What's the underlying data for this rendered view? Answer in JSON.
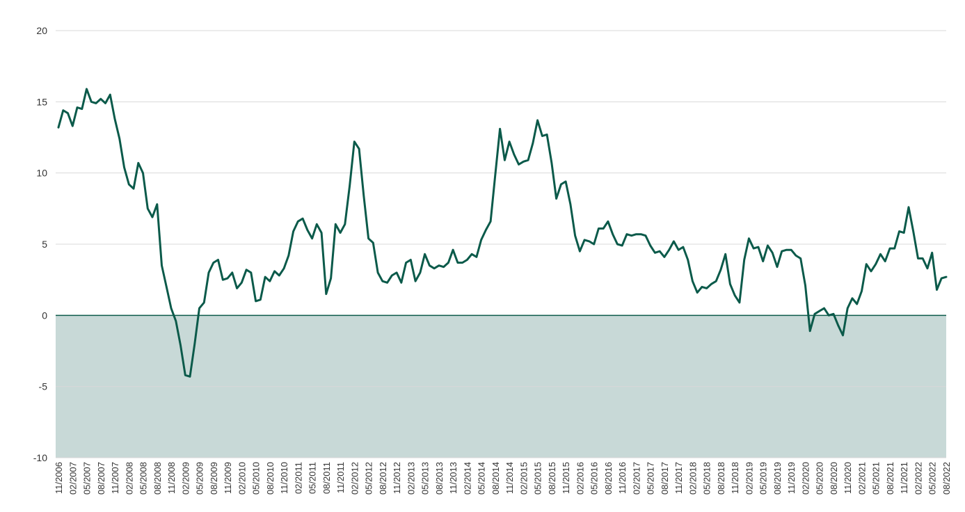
{
  "chart_data": {
    "type": "line",
    "title": "",
    "xlabel": "",
    "ylabel": "",
    "ylim": [
      -10,
      20
    ],
    "yticks": [
      20,
      15,
      10,
      5,
      0,
      -5,
      -10
    ],
    "grid": true,
    "legend": "none",
    "colors": {
      "line": "#0b5a4a",
      "negative_fill": "#c8d9d7",
      "zero_line": "#0b5a4a",
      "grid": "#d8d8d8"
    },
    "x_tick_labels": [
      "11/2006",
      "02/2007",
      "05/2007",
      "08/2007",
      "11/2007",
      "02/2008",
      "05/2008",
      "08/2008",
      "11/2008",
      "02/2009",
      "05/2009",
      "08/2009",
      "11/2009",
      "02/2010",
      "05/2010",
      "08/2010",
      "11/2010",
      "02/2011",
      "05/2011",
      "08/2011",
      "11/2011",
      "02/2012",
      "05/2012",
      "08/2012",
      "11/2012",
      "02/2013",
      "05/2013",
      "08/2013",
      "11/2013",
      "02/2014",
      "05/2014",
      "08/2014",
      "11/2014",
      "02/2015",
      "05/2015",
      "08/2015",
      "11/2015",
      "02/2016",
      "05/2016",
      "08/2016",
      "11/2016",
      "02/2017",
      "05/2017",
      "08/2017",
      "11/2017",
      "02/2018",
      "05/2018",
      "08/2018",
      "11/2018",
      "02/2019",
      "05/2019",
      "08/2019",
      "11/2019",
      "02/2020",
      "05/2020",
      "08/2020",
      "11/2020",
      "02/2021",
      "05/2021",
      "08/2021",
      "11/2021",
      "02/2022",
      "05/2022",
      "08/2022"
    ],
    "x": [
      "11/2006",
      "12/2006",
      "01/2007",
      "02/2007",
      "03/2007",
      "04/2007",
      "05/2007",
      "06/2007",
      "07/2007",
      "08/2007",
      "09/2007",
      "10/2007",
      "11/2007",
      "12/2007",
      "01/2008",
      "02/2008",
      "03/2008",
      "04/2008",
      "05/2008",
      "06/2008",
      "07/2008",
      "08/2008",
      "09/2008",
      "10/2008",
      "11/2008",
      "12/2008",
      "01/2009",
      "02/2009",
      "03/2009",
      "04/2009",
      "05/2009",
      "06/2009",
      "07/2009",
      "08/2009",
      "09/2009",
      "10/2009",
      "11/2009",
      "12/2009",
      "01/2010",
      "02/2010",
      "03/2010",
      "04/2010",
      "05/2010",
      "06/2010",
      "07/2010",
      "08/2010",
      "09/2010",
      "10/2010",
      "11/2010",
      "12/2010",
      "01/2011",
      "02/2011",
      "03/2011",
      "04/2011",
      "05/2011",
      "06/2011",
      "07/2011",
      "08/2011",
      "09/2011",
      "10/2011",
      "11/2011",
      "12/2011",
      "01/2012",
      "02/2012",
      "03/2012",
      "04/2012",
      "05/2012",
      "06/2012",
      "07/2012",
      "08/2012",
      "09/2012",
      "10/2012",
      "11/2012",
      "12/2012",
      "01/2013",
      "02/2013",
      "03/2013",
      "04/2013",
      "05/2013",
      "06/2013",
      "07/2013",
      "08/2013",
      "09/2013",
      "10/2013",
      "11/2013",
      "12/2013",
      "01/2014",
      "02/2014",
      "03/2014",
      "04/2014",
      "05/2014",
      "06/2014",
      "07/2014",
      "08/2014",
      "09/2014",
      "10/2014",
      "11/2014",
      "12/2014",
      "01/2015",
      "02/2015",
      "03/2015",
      "04/2015",
      "05/2015",
      "06/2015",
      "07/2015",
      "08/2015",
      "09/2015",
      "10/2015",
      "11/2015",
      "12/2015",
      "01/2016",
      "02/2016",
      "03/2016",
      "04/2016",
      "05/2016",
      "06/2016",
      "07/2016",
      "08/2016",
      "09/2016",
      "10/2016",
      "11/2016",
      "12/2016",
      "01/2017",
      "02/2017",
      "03/2017",
      "04/2017",
      "05/2017",
      "06/2017",
      "07/2017",
      "08/2017",
      "09/2017",
      "10/2017",
      "11/2017",
      "12/2017",
      "01/2018",
      "02/2018",
      "03/2018",
      "04/2018",
      "05/2018",
      "06/2018",
      "07/2018",
      "08/2018",
      "09/2018",
      "10/2018",
      "11/2018",
      "12/2018",
      "01/2019",
      "02/2019",
      "03/2019",
      "04/2019",
      "05/2019",
      "06/2019",
      "07/2019",
      "08/2019",
      "09/2019",
      "10/2019",
      "11/2019",
      "12/2019",
      "01/2020",
      "02/2020",
      "03/2020",
      "04/2020",
      "05/2020",
      "06/2020",
      "07/2020",
      "08/2020",
      "09/2020",
      "10/2020",
      "11/2020",
      "12/2020",
      "01/2021",
      "02/2021",
      "03/2021",
      "04/2021",
      "05/2021",
      "06/2021",
      "07/2021",
      "08/2021",
      "09/2021",
      "10/2021",
      "11/2021",
      "12/2021",
      "01/2022",
      "02/2022",
      "03/2022",
      "04/2022",
      "05/2022",
      "06/2022",
      "07/2022",
      "08/2022"
    ],
    "series": [
      {
        "values": [
          13.2,
          14.4,
          14.2,
          13.3,
          14.6,
          14.5,
          15.9,
          15.0,
          14.9,
          15.2,
          14.9,
          15.5,
          13.8,
          12.4,
          10.4,
          9.2,
          8.9,
          10.7,
          10.0,
          7.5,
          6.9,
          7.8,
          3.5,
          2.0,
          0.5,
          -0.4,
          -2.1,
          -4.2,
          -4.3,
          -2.0,
          0.5,
          0.9,
          3.0,
          3.7,
          3.9,
          2.5,
          2.6,
          3.0,
          1.9,
          2.3,
          3.2,
          3.0,
          1.0,
          1.1,
          2.7,
          2.4,
          3.1,
          2.8,
          3.3,
          4.2,
          5.9,
          6.6,
          6.8,
          6.0,
          5.4,
          6.4,
          5.8,
          1.5,
          2.6,
          6.4,
          5.8,
          6.4,
          9.1,
          12.2,
          11.7,
          8.4,
          5.4,
          5.1,
          3.0,
          2.4,
          2.3,
          2.8,
          3.0,
          2.3,
          3.7,
          3.9,
          2.4,
          3.0,
          4.3,
          3.5,
          3.3,
          3.5,
          3.4,
          3.7,
          4.6,
          3.7,
          3.7,
          3.9,
          4.3,
          4.1,
          5.3,
          6.0,
          6.6,
          9.9,
          13.1,
          10.9,
          12.2,
          11.3,
          10.6,
          10.8,
          10.9,
          12.1,
          13.7,
          12.6,
          12.7,
          10.7,
          8.2,
          9.2,
          9.4,
          7.8,
          5.6,
          4.5,
          5.3,
          5.2,
          5.0,
          6.1,
          6.1,
          6.6,
          5.7,
          5.0,
          4.9,
          5.7,
          5.6,
          5.7,
          5.7,
          5.6,
          4.9,
          4.4,
          4.5,
          4.1,
          4.6,
          5.2,
          4.6,
          4.8,
          3.9,
          2.4,
          1.6,
          2.0,
          1.9,
          2.2,
          2.4,
          3.2,
          4.3,
          2.2,
          1.4,
          0.9,
          3.9,
          5.4,
          4.7,
          4.8,
          3.8,
          4.9,
          4.4,
          3.4,
          4.5,
          4.6,
          4.6,
          4.2,
          4.0,
          2.1,
          -1.1,
          0.1,
          0.3,
          0.5,
          0.0,
          0.1,
          -0.7,
          -1.4,
          0.5,
          1.2,
          0.8,
          1.7,
          3.6,
          3.1,
          3.6,
          4.3,
          3.8,
          4.7,
          4.7,
          5.9,
          5.8,
          7.6,
          5.9,
          4.0,
          4.0,
          3.3,
          4.4,
          1.8,
          2.6,
          2.7
        ]
      }
    ]
  }
}
